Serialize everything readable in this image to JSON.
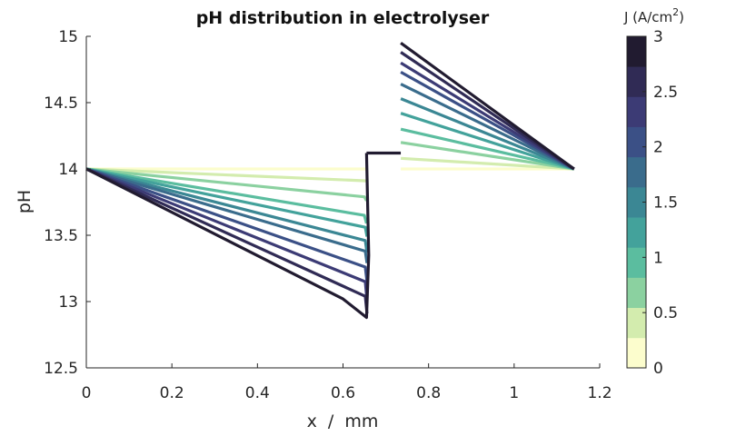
{
  "chart_data": {
    "type": "line",
    "title": "pH distribution in electrolyser",
    "xlabel": "x  /  mm",
    "ylabel": "pH",
    "xlim": [
      0,
      1.2
    ],
    "ylim": [
      12.5,
      15
    ],
    "xticks": [
      "0",
      "0.2",
      "0.4",
      "0.6",
      "0.8",
      "1",
      "1.2"
    ],
    "yticks": [
      "12.5",
      "13",
      "13.5",
      "14",
      "14.5",
      "15"
    ],
    "colorbar": {
      "title": "J (A/cm",
      "title_sup": "2",
      "title_end": ")",
      "range": [
        0,
        3
      ],
      "ticks": [
        "0",
        "0.5",
        "1",
        "1.5",
        "2",
        "2.5",
        "3"
      ],
      "colors": [
        "#fcfdcd",
        "#d3ecae",
        "#8bd1a0",
        "#5bbd9f",
        "#43a29b",
        "#3b8794",
        "#3a6c8c",
        "#3b5086",
        "#3c3b75",
        "#302b55",
        "#211b30"
      ]
    },
    "grid": false,
    "series": [
      {
        "J": 0.0,
        "color": "#fcfdcd",
        "left": {
          "x": [
            0,
            0.655
          ],
          "y": [
            14.0,
            14.0
          ]
        },
        "right": {
          "x": [
            0.735,
            1.14
          ],
          "y": [
            14.0,
            14.0
          ]
        }
      },
      {
        "J": 0.3,
        "color": "#d3ecae",
        "left": {
          "x": [
            0,
            0.655
          ],
          "y": [
            14.0,
            13.91
          ]
        },
        "right": {
          "x": [
            0.735,
            1.14
          ],
          "y": [
            14.08,
            14.0
          ]
        }
      },
      {
        "J": 0.6,
        "color": "#8bd1a0",
        "left": {
          "x": [
            0,
            0.65,
            0.655
          ],
          "y": [
            14.0,
            13.79,
            13.76
          ]
        },
        "right": {
          "x": [
            0.735,
            1.14
          ],
          "y": [
            14.2,
            14.0
          ]
        }
      },
      {
        "J": 0.9,
        "color": "#5bbd9f",
        "left": {
          "x": [
            0,
            0.65,
            0.655
          ],
          "y": [
            14.0,
            13.65,
            13.59
          ]
        },
        "right": {
          "x": [
            0.735,
            1.14
          ],
          "y": [
            14.3,
            14.0
          ]
        }
      },
      {
        "J": 1.2,
        "color": "#43a29b",
        "left": {
          "x": [
            0,
            0.652,
            0.656
          ],
          "y": [
            14.0,
            13.56,
            13.49
          ]
        },
        "right": {
          "x": [
            0.735,
            1.14
          ],
          "y": [
            14.42,
            14.0
          ]
        }
      },
      {
        "J": 1.5,
        "color": "#3b8794",
        "left": {
          "x": [
            0,
            0.652,
            0.656
          ],
          "y": [
            14.0,
            13.46,
            13.37
          ]
        },
        "right": {
          "x": [
            0.735,
            1.14
          ],
          "y": [
            14.53,
            14.0
          ]
        }
      },
      {
        "J": 1.8,
        "color": "#3a6c8c",
        "left": {
          "x": [
            0,
            0.652,
            0.656
          ],
          "y": [
            14.0,
            13.38,
            13.29
          ]
        },
        "right": {
          "x": [
            0.735,
            1.14
          ],
          "y": [
            14.64,
            14.0
          ]
        }
      },
      {
        "J": 2.1,
        "color": "#3b5086",
        "left": {
          "x": [
            0,
            0.652,
            0.656
          ],
          "y": [
            14.0,
            13.26,
            13.15
          ]
        },
        "right": {
          "x": [
            0.735,
            1.14
          ],
          "y": [
            14.73,
            14.0
          ]
        }
      },
      {
        "J": 2.4,
        "color": "#3c3b75",
        "left": {
          "x": [
            0,
            0.652,
            0.656
          ],
          "y": [
            14.0,
            13.15,
            13.01
          ]
        },
        "right": {
          "x": [
            0.735,
            1.14
          ],
          "y": [
            14.8,
            14.0
          ]
        }
      },
      {
        "J": 2.7,
        "color": "#302b55",
        "left": {
          "x": [
            0,
            0.652,
            0.656
          ],
          "y": [
            14.0,
            13.04,
            12.91
          ]
        },
        "right": {
          "x": [
            0.735,
            1.14
          ],
          "y": [
            14.88,
            14.0
          ]
        }
      },
      {
        "J": 3.0,
        "color": "#211b30",
        "left": {
          "x": [
            0,
            0.6,
            0.655,
            0.66,
            0.655
          ],
          "y": [
            14.0,
            13.02,
            12.88,
            13.35,
            14.12
          ]
        },
        "right": {
          "x": [
            0.735,
            1.14
          ],
          "y": [
            14.95,
            14.0
          ]
        }
      }
    ],
    "membrane_segment": {
      "color": "#211b30",
      "x": [
        0.655,
        0.735
      ],
      "y": [
        14.12,
        14.12
      ]
    }
  }
}
